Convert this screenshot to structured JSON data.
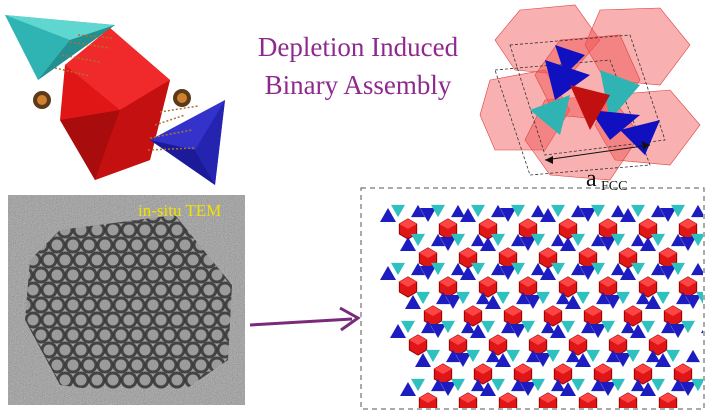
{
  "title": {
    "line1": "Depletion Induced",
    "line2": "Binary Assembly"
  },
  "tem_label": "in-situ TEM",
  "lattice_label": {
    "symbol": "a",
    "subscript": "FCC"
  }
}
